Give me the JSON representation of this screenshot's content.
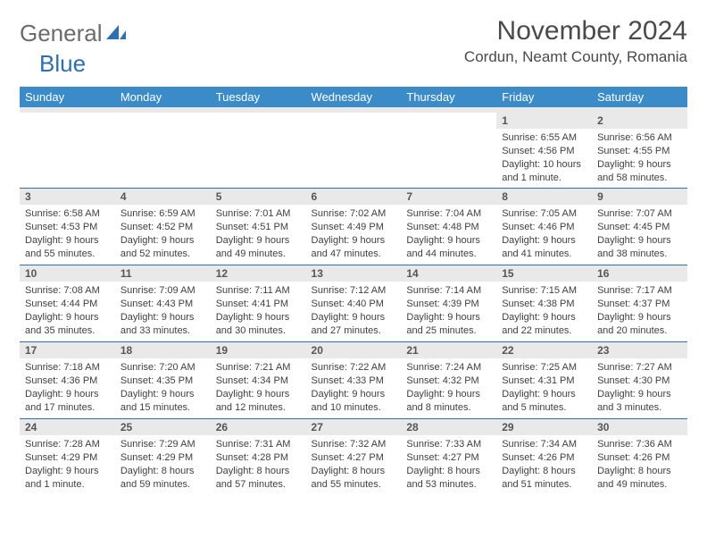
{
  "logo": {
    "word1": "General",
    "word2": "Blue"
  },
  "title": "November 2024",
  "location": "Cordun, Neamt County, Romania",
  "dayHeaders": [
    "Sunday",
    "Monday",
    "Tuesday",
    "Wednesday",
    "Thursday",
    "Friday",
    "Saturday"
  ],
  "colors": {
    "headerBg": "#3b8bc8",
    "headerText": "#ffffff",
    "bandBg": "#e9e9e9",
    "borderTop": "#2f6fb0",
    "logoGray": "#6b6b6b",
    "logoBlue": "#2f6fb0"
  },
  "weeks": [
    [
      {
        "empty": true
      },
      {
        "empty": true
      },
      {
        "empty": true
      },
      {
        "empty": true
      },
      {
        "empty": true
      },
      {
        "n": "1",
        "sunrise": "Sunrise: 6:55 AM",
        "sunset": "Sunset: 4:56 PM",
        "daylight": "Daylight: 10 hours and 1 minute."
      },
      {
        "n": "2",
        "sunrise": "Sunrise: 6:56 AM",
        "sunset": "Sunset: 4:55 PM",
        "daylight": "Daylight: 9 hours and 58 minutes."
      }
    ],
    [
      {
        "n": "3",
        "sunrise": "Sunrise: 6:58 AM",
        "sunset": "Sunset: 4:53 PM",
        "daylight": "Daylight: 9 hours and 55 minutes."
      },
      {
        "n": "4",
        "sunrise": "Sunrise: 6:59 AM",
        "sunset": "Sunset: 4:52 PM",
        "daylight": "Daylight: 9 hours and 52 minutes."
      },
      {
        "n": "5",
        "sunrise": "Sunrise: 7:01 AM",
        "sunset": "Sunset: 4:51 PM",
        "daylight": "Daylight: 9 hours and 49 minutes."
      },
      {
        "n": "6",
        "sunrise": "Sunrise: 7:02 AM",
        "sunset": "Sunset: 4:49 PM",
        "daylight": "Daylight: 9 hours and 47 minutes."
      },
      {
        "n": "7",
        "sunrise": "Sunrise: 7:04 AM",
        "sunset": "Sunset: 4:48 PM",
        "daylight": "Daylight: 9 hours and 44 minutes."
      },
      {
        "n": "8",
        "sunrise": "Sunrise: 7:05 AM",
        "sunset": "Sunset: 4:46 PM",
        "daylight": "Daylight: 9 hours and 41 minutes."
      },
      {
        "n": "9",
        "sunrise": "Sunrise: 7:07 AM",
        "sunset": "Sunset: 4:45 PM",
        "daylight": "Daylight: 9 hours and 38 minutes."
      }
    ],
    [
      {
        "n": "10",
        "sunrise": "Sunrise: 7:08 AM",
        "sunset": "Sunset: 4:44 PM",
        "daylight": "Daylight: 9 hours and 35 minutes."
      },
      {
        "n": "11",
        "sunrise": "Sunrise: 7:09 AM",
        "sunset": "Sunset: 4:43 PM",
        "daylight": "Daylight: 9 hours and 33 minutes."
      },
      {
        "n": "12",
        "sunrise": "Sunrise: 7:11 AM",
        "sunset": "Sunset: 4:41 PM",
        "daylight": "Daylight: 9 hours and 30 minutes."
      },
      {
        "n": "13",
        "sunrise": "Sunrise: 7:12 AM",
        "sunset": "Sunset: 4:40 PM",
        "daylight": "Daylight: 9 hours and 27 minutes."
      },
      {
        "n": "14",
        "sunrise": "Sunrise: 7:14 AM",
        "sunset": "Sunset: 4:39 PM",
        "daylight": "Daylight: 9 hours and 25 minutes."
      },
      {
        "n": "15",
        "sunrise": "Sunrise: 7:15 AM",
        "sunset": "Sunset: 4:38 PM",
        "daylight": "Daylight: 9 hours and 22 minutes."
      },
      {
        "n": "16",
        "sunrise": "Sunrise: 7:17 AM",
        "sunset": "Sunset: 4:37 PM",
        "daylight": "Daylight: 9 hours and 20 minutes."
      }
    ],
    [
      {
        "n": "17",
        "sunrise": "Sunrise: 7:18 AM",
        "sunset": "Sunset: 4:36 PM",
        "daylight": "Daylight: 9 hours and 17 minutes."
      },
      {
        "n": "18",
        "sunrise": "Sunrise: 7:20 AM",
        "sunset": "Sunset: 4:35 PM",
        "daylight": "Daylight: 9 hours and 15 minutes."
      },
      {
        "n": "19",
        "sunrise": "Sunrise: 7:21 AM",
        "sunset": "Sunset: 4:34 PM",
        "daylight": "Daylight: 9 hours and 12 minutes."
      },
      {
        "n": "20",
        "sunrise": "Sunrise: 7:22 AM",
        "sunset": "Sunset: 4:33 PM",
        "daylight": "Daylight: 9 hours and 10 minutes."
      },
      {
        "n": "21",
        "sunrise": "Sunrise: 7:24 AM",
        "sunset": "Sunset: 4:32 PM",
        "daylight": "Daylight: 9 hours and 8 minutes."
      },
      {
        "n": "22",
        "sunrise": "Sunrise: 7:25 AM",
        "sunset": "Sunset: 4:31 PM",
        "daylight": "Daylight: 9 hours and 5 minutes."
      },
      {
        "n": "23",
        "sunrise": "Sunrise: 7:27 AM",
        "sunset": "Sunset: 4:30 PM",
        "daylight": "Daylight: 9 hours and 3 minutes."
      }
    ],
    [
      {
        "n": "24",
        "sunrise": "Sunrise: 7:28 AM",
        "sunset": "Sunset: 4:29 PM",
        "daylight": "Daylight: 9 hours and 1 minute."
      },
      {
        "n": "25",
        "sunrise": "Sunrise: 7:29 AM",
        "sunset": "Sunset: 4:29 PM",
        "daylight": "Daylight: 8 hours and 59 minutes."
      },
      {
        "n": "26",
        "sunrise": "Sunrise: 7:31 AM",
        "sunset": "Sunset: 4:28 PM",
        "daylight": "Daylight: 8 hours and 57 minutes."
      },
      {
        "n": "27",
        "sunrise": "Sunrise: 7:32 AM",
        "sunset": "Sunset: 4:27 PM",
        "daylight": "Daylight: 8 hours and 55 minutes."
      },
      {
        "n": "28",
        "sunrise": "Sunrise: 7:33 AM",
        "sunset": "Sunset: 4:27 PM",
        "daylight": "Daylight: 8 hours and 53 minutes."
      },
      {
        "n": "29",
        "sunrise": "Sunrise: 7:34 AM",
        "sunset": "Sunset: 4:26 PM",
        "daylight": "Daylight: 8 hours and 51 minutes."
      },
      {
        "n": "30",
        "sunrise": "Sunrise: 7:36 AM",
        "sunset": "Sunset: 4:26 PM",
        "daylight": "Daylight: 8 hours and 49 minutes."
      }
    ]
  ]
}
